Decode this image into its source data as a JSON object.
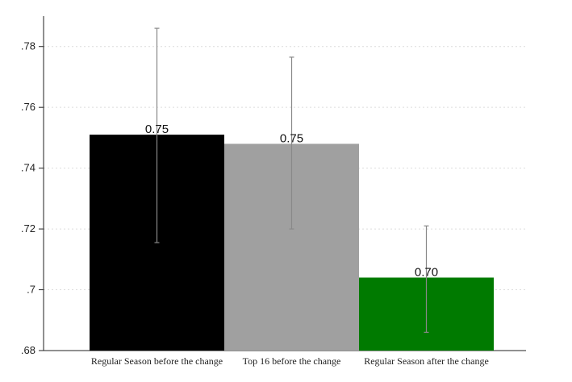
{
  "chart_data": {
    "type": "bar",
    "title": "",
    "xlabel": "",
    "ylabel": "",
    "ylim": [
      0.68,
      0.79
    ],
    "yticks": [
      0.68,
      0.7,
      0.72,
      0.74,
      0.76,
      0.78
    ],
    "ytick_labels": [
      ".68",
      ".7",
      ".72",
      ".74",
      ".76",
      ".78"
    ],
    "grid": true,
    "categories": [
      "Regular Season before the change",
      "Top 16 before the change",
      "Regular Season after the change"
    ],
    "values": [
      0.751,
      0.748,
      0.704
    ],
    "data_labels": [
      "0.75",
      "0.75",
      "0.70"
    ],
    "ci_low": [
      0.7155,
      0.72,
      0.686
    ],
    "ci_high": [
      0.786,
      0.7765,
      0.721
    ],
    "colors": [
      "#000000",
      "#a0a0a0",
      "#007a00"
    ]
  }
}
